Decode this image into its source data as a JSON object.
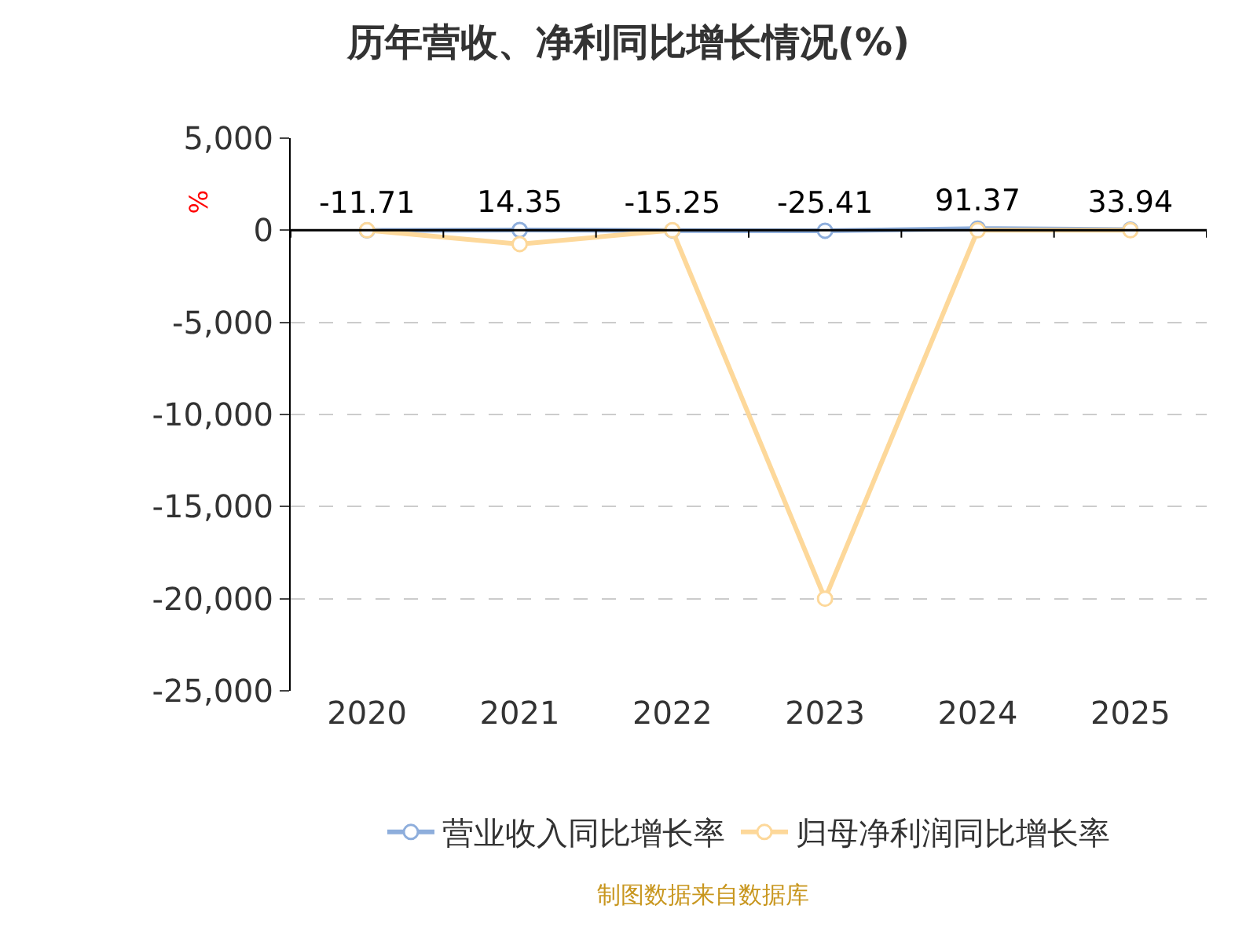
{
  "chart_data": {
    "type": "line",
    "title": "历年营收、净利同比增长情况(%)",
    "ylabel": "%",
    "categories": [
      "2020",
      "2021",
      "2022",
      "2023",
      "2024",
      "2025"
    ],
    "series": [
      {
        "name": "营业收入同比增长率",
        "color": "#8eaedc",
        "values": [
          -11.71,
          14.35,
          -15.25,
          -25.41,
          91.37,
          33.94
        ],
        "value_labels": [
          "-11.71",
          "14.35",
          "-15.25",
          "-25.41",
          "91.37",
          "33.94"
        ]
      },
      {
        "name": "归母净利润同比增长率",
        "color": "#fdd89a",
        "values": [
          0,
          -750,
          0,
          -20000,
          0,
          0
        ]
      }
    ],
    "ylim": [
      -25000,
      5000
    ],
    "yticks": [
      {
        "value": 5000,
        "label": "5,000"
      },
      0,
      {
        "value": -5000,
        "label": "-5,000"
      },
      {
        "value": -10000,
        "label": "-10,000"
      },
      {
        "value": -15000,
        "label": "-15,000"
      },
      {
        "value": -20000,
        "label": "-20,000"
      },
      {
        "value": -25000,
        "label": "-25,000"
      }
    ],
    "grid": "y",
    "legend": "bottom",
    "marker": "circle",
    "line_style": "solid",
    "annotations": [
      "制图数据来自数据库"
    ]
  }
}
